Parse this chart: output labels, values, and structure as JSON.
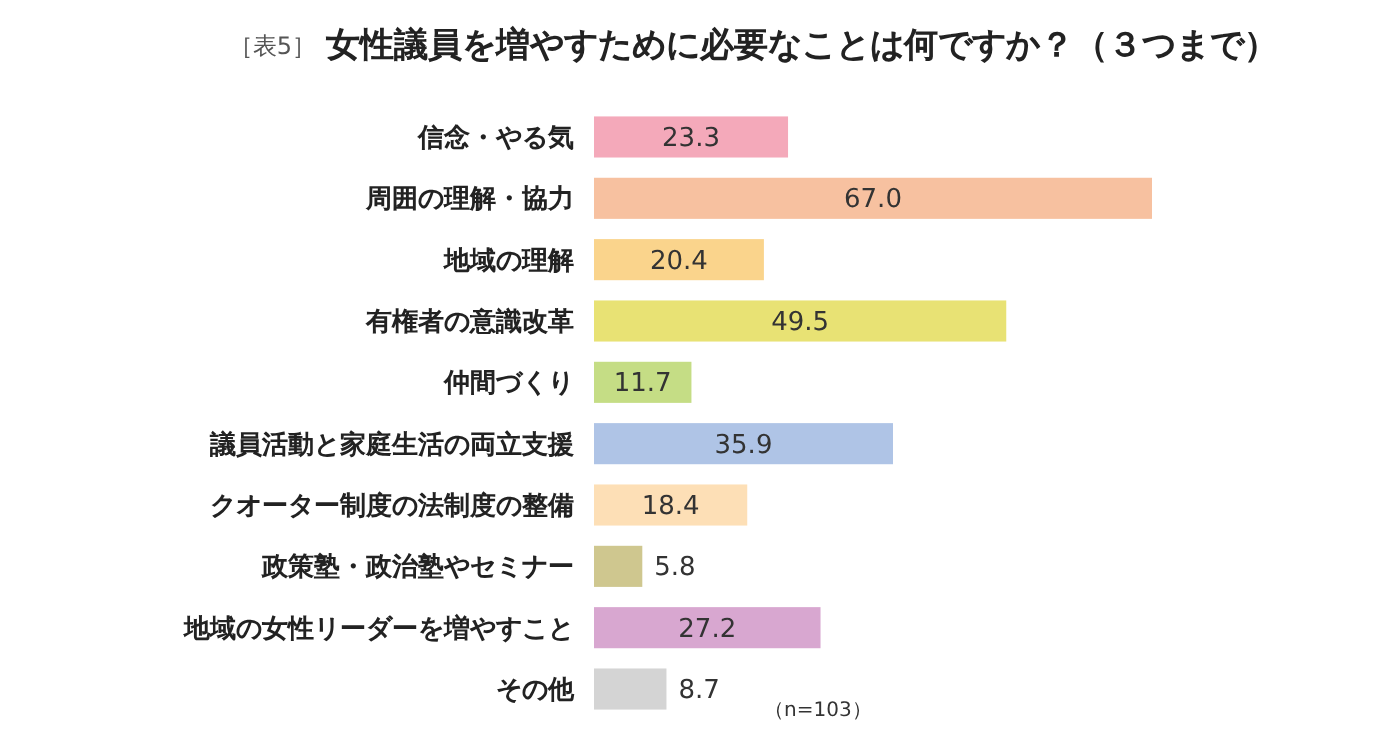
{
  "chart_data": {
    "type": "bar",
    "orientation": "horizontal",
    "title": "女性議員を増やすために必要なことは何ですか？（３つまで）",
    "annotations": [
      "［表5］",
      "（n=103）"
    ],
    "categories": [
      "信念・やる気",
      "周囲の理解・協力",
      "地域の理解",
      "有権者の意識改革",
      "仲間づくり",
      "議員活動と家庭生活の両立支援",
      "クオーター制度の法制度の整備",
      "政策塾・政治塾やセミナー",
      "地域の女性リーダーを増やすこと",
      "その他"
    ],
    "values": [
      23.3,
      67.0,
      20.4,
      49.5,
      11.7,
      35.9,
      18.4,
      5.8,
      27.2,
      8.7
    ],
    "value_labels": [
      "23.3",
      "67.0",
      "20.4",
      "49.5",
      "11.7",
      "35.9",
      "18.4",
      "5.8",
      "27.2",
      "8.7"
    ],
    "colors": [
      "#f4a9ba",
      "#f7c1a0",
      "#fad48c",
      "#e8e274",
      "#c5dd85",
      "#afc4e6",
      "#fddfb6",
      "#cfc78f",
      "#d8a7d0",
      "#d4d4d4"
    ]
  }
}
